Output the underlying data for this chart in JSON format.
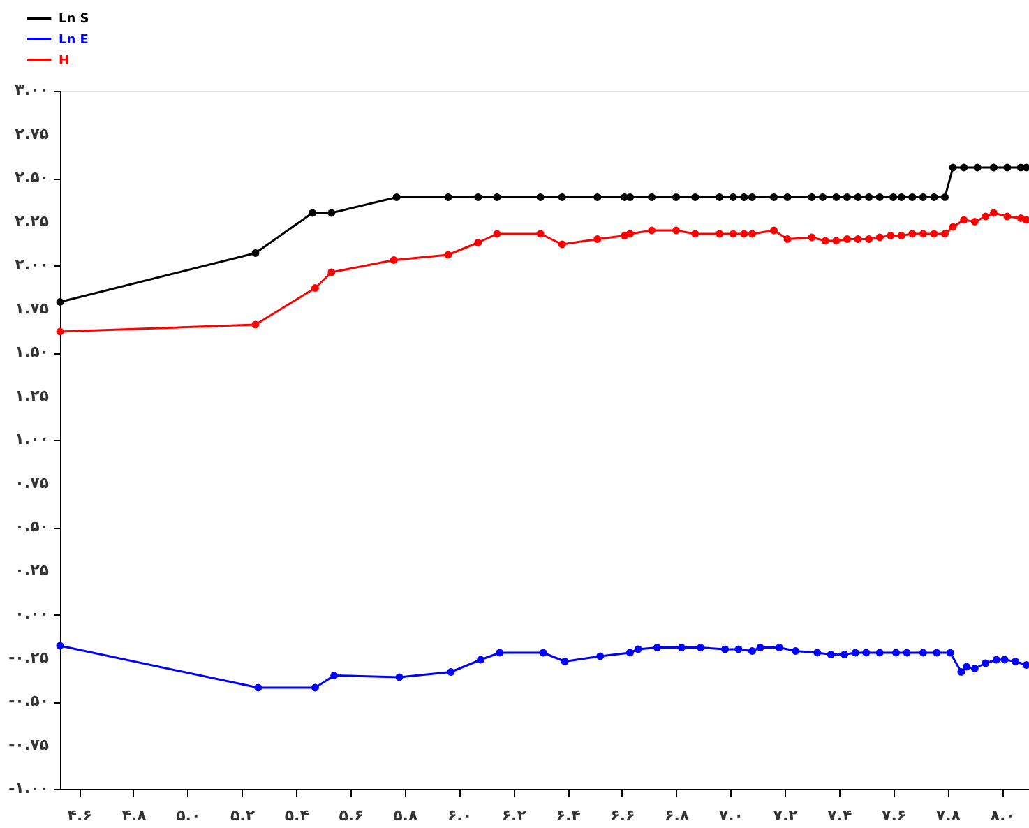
{
  "chart_data": {
    "type": "line",
    "legend": "top left",
    "marker": "circle",
    "line_style": "solid",
    "grid": false,
    "xlim": [
      4.53,
      8.1
    ],
    "xticks": [
      {
        "value": 4.6,
        "label": "۴.۶"
      },
      {
        "value": 4.8,
        "label": "۴.۸"
      },
      {
        "value": 5.0,
        "label": "۵.۰"
      },
      {
        "value": 5.2,
        "label": "۵.۲"
      },
      {
        "value": 5.4,
        "label": "۵.۴"
      },
      {
        "value": 5.6,
        "label": "۵.۶"
      },
      {
        "value": 5.8,
        "label": "۵.۸"
      },
      {
        "value": 6.0,
        "label": "۶.۰"
      },
      {
        "value": 6.2,
        "label": "۶.۲"
      },
      {
        "value": 6.4,
        "label": "۶.۴"
      },
      {
        "value": 6.6,
        "label": "۶.۶"
      },
      {
        "value": 6.8,
        "label": "۶.۸"
      },
      {
        "value": 7.0,
        "label": "۷.۰"
      },
      {
        "value": 7.2,
        "label": "۷.۲"
      },
      {
        "value": 7.4,
        "label": "۷.۴"
      },
      {
        "value": 7.6,
        "label": "۷.۶"
      },
      {
        "value": 7.8,
        "label": "۷.۸"
      },
      {
        "value": 8.0,
        "label": "۸.۰"
      }
    ],
    "ylim": [
      -1,
      3
    ],
    "yticks": [
      {
        "value": 3,
        "label": "۳.۰۰"
      },
      {
        "value": 2.75,
        "label": "۲.۷۵"
      },
      {
        "value": 2.5,
        "label": "۲.۵۰"
      },
      {
        "value": 2.25,
        "label": "۲.۲۵"
      },
      {
        "value": 2,
        "label": "۲.۰۰"
      },
      {
        "value": 1.75,
        "label": "۱.۷۵"
      },
      {
        "value": 1.5,
        "label": "۱.۵۰"
      },
      {
        "value": 1.25,
        "label": "۱.۲۵"
      },
      {
        "value": 1,
        "label": "۱.۰۰"
      },
      {
        "value": 0.75,
        "label": "۰.۷۵"
      },
      {
        "value": 0.5,
        "label": "۰.۵۰"
      },
      {
        "value": 0.25,
        "label": "۰.۲۵"
      },
      {
        "value": 0,
        "label": "۰.۰۰"
      },
      {
        "value": -0.25,
        "label": "-۰.۲۵"
      },
      {
        "value": -0.5,
        "label": "-۰.۵۰"
      },
      {
        "value": -0.75,
        "label": "-۰.۷۵"
      },
      {
        "value": -1,
        "label": "-۱.۰۰"
      }
    ],
    "series": [
      {
        "name": "Ln S",
        "color": "#000000",
        "x": [
          4.53,
          5.25,
          5.46,
          5.53,
          5.77,
          5.96,
          6.07,
          6.14,
          6.3,
          6.38,
          6.51,
          6.61,
          6.63,
          6.71,
          6.8,
          6.87,
          6.96,
          7.01,
          7.05,
          7.08,
          7.16,
          7.21,
          7.3,
          7.34,
          7.39,
          7.43,
          7.47,
          7.51,
          7.55,
          7.6,
          7.63,
          7.67,
          7.71,
          7.75,
          7.79,
          7.82,
          7.86,
          7.91,
          7.97,
          8.02,
          8.07,
          8.09
        ],
        "values": [
          1.79,
          2.07,
          2.3,
          2.3,
          2.39,
          2.39,
          2.39,
          2.39,
          2.39,
          2.39,
          2.39,
          2.39,
          2.39,
          2.39,
          2.39,
          2.39,
          2.39,
          2.39,
          2.39,
          2.39,
          2.39,
          2.39,
          2.39,
          2.39,
          2.39,
          2.39,
          2.39,
          2.39,
          2.39,
          2.39,
          2.39,
          2.39,
          2.39,
          2.39,
          2.39,
          2.56,
          2.56,
          2.56,
          2.56,
          2.56,
          2.56,
          2.56
        ]
      },
      {
        "name": "Ln E",
        "color": "#0000ff",
        "x": [
          4.53,
          5.26,
          5.47,
          5.54,
          5.78,
          5.97,
          6.08,
          6.15,
          6.31,
          6.39,
          6.52,
          6.63,
          6.66,
          6.73,
          6.82,
          6.89,
          6.98,
          7.03,
          7.08,
          7.11,
          7.18,
          7.24,
          7.32,
          7.37,
          7.42,
          7.46,
          7.5,
          7.55,
          7.61,
          7.65,
          7.71,
          7.76,
          7.81,
          7.85,
          7.87,
          7.9,
          7.94,
          7.98,
          8.01,
          8.05,
          8.09
        ],
        "values": [
          -0.18,
          -0.42,
          -0.42,
          -0.35,
          -0.36,
          -0.33,
          -0.26,
          -0.22,
          -0.22,
          -0.27,
          -0.24,
          -0.22,
          -0.2,
          -0.19,
          -0.19,
          -0.19,
          -0.2,
          -0.2,
          -0.21,
          -0.19,
          -0.19,
          -0.21,
          -0.22,
          -0.23,
          -0.23,
          -0.22,
          -0.22,
          -0.22,
          -0.22,
          -0.22,
          -0.22,
          -0.22,
          -0.22,
          -0.33,
          -0.3,
          -0.31,
          -0.28,
          -0.26,
          -0.26,
          -0.27,
          -0.29
        ]
      },
      {
        "name": "H",
        "color": "#ff0000",
        "x": [
          4.53,
          5.25,
          5.47,
          5.53,
          5.76,
          5.96,
          6.07,
          6.14,
          6.3,
          6.38,
          6.51,
          6.61,
          6.63,
          6.71,
          6.8,
          6.87,
          6.96,
          7.01,
          7.05,
          7.08,
          7.16,
          7.21,
          7.3,
          7.35,
          7.39,
          7.43,
          7.47,
          7.51,
          7.55,
          7.59,
          7.63,
          7.67,
          7.71,
          7.75,
          7.79,
          7.82,
          7.86,
          7.9,
          7.94,
          7.97,
          8.02,
          8.07,
          8.09
        ],
        "values": [
          1.62,
          1.66,
          1.87,
          1.96,
          2.03,
          2.06,
          2.13,
          2.18,
          2.18,
          2.12,
          2.15,
          2.17,
          2.18,
          2.2,
          2.2,
          2.18,
          2.18,
          2.18,
          2.18,
          2.18,
          2.2,
          2.15,
          2.16,
          2.14,
          2.14,
          2.15,
          2.15,
          2.15,
          2.16,
          2.17,
          2.17,
          2.18,
          2.18,
          2.18,
          2.18,
          2.22,
          2.26,
          2.25,
          2.28,
          2.3,
          2.28,
          2.27,
          2.26
        ]
      }
    ]
  }
}
